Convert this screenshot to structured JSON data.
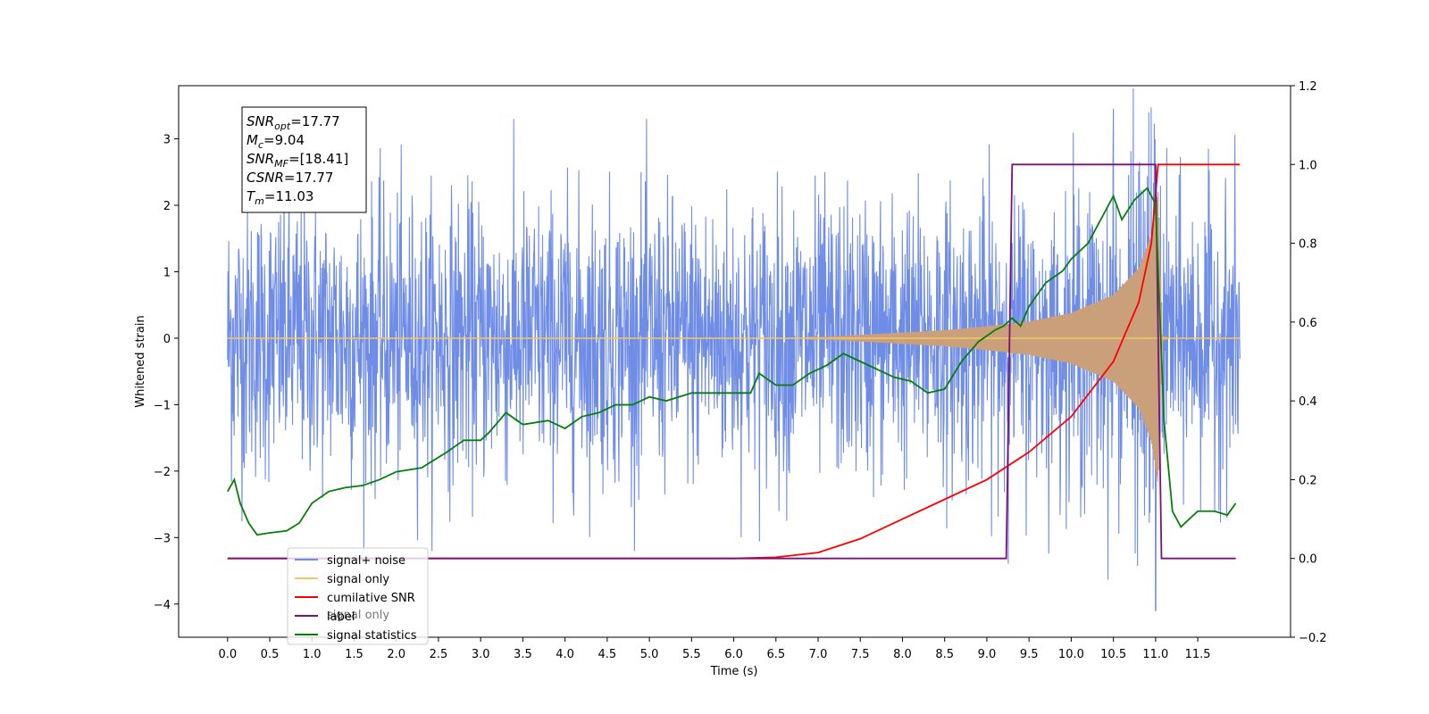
{
  "chart_data": {
    "type": "line",
    "xlabel": "Time (s)",
    "ylabel": "Whitened strain",
    "xlim": [
      -0.58,
      12.6
    ],
    "ylim_left": [
      -4.5,
      3.8
    ],
    "ylim_right": [
      -0.2,
      1.2
    ],
    "x_ticks": [
      "0.0",
      "0.5",
      "1.0",
      "1.5",
      "2.0",
      "2.5",
      "3.0",
      "3.5",
      "4.0",
      "4.5",
      "5.0",
      "5.5",
      "6.0",
      "6.5",
      "7.0",
      "7.5",
      "8.0",
      "8.5",
      "9.0",
      "9.5",
      "10.0",
      "10.5",
      "11.0",
      "11.5"
    ],
    "y_ticks_left": [
      "3",
      "2",
      "1",
      "0",
      "−1",
      "−2",
      "−3",
      "−4"
    ],
    "y_ticks_right": [
      "1.2",
      "1.0",
      "0.8",
      "0.6",
      "0.4",
      "0.2",
      "0.0",
      "−0.2"
    ],
    "annotation": {
      "lines": [
        {
          "base": "SNR",
          "sub": "opt",
          "value": "=17.77"
        },
        {
          "base": "M",
          "sub": "c",
          "value": "=9.04"
        },
        {
          "base": "SNR",
          "sub": "MF",
          "value": "=[18.41]"
        },
        {
          "base": "CSNR",
          "sub": "",
          "value": "=17.77"
        },
        {
          "base": "T",
          "sub": "m",
          "value": "=11.03"
        }
      ]
    },
    "legend": {
      "placement": "lower-left",
      "entries": [
        {
          "label": "signal+ noise",
          "color": "#6f8de6"
        },
        {
          "label": "signal only",
          "color": "#f5c56a"
        },
        {
          "label": "cumilative SNR",
          "color": "#ff0000"
        },
        {
          "label": "label",
          "color": "#7b0f7b"
        },
        {
          "label": "signal statistics",
          "color": "#087d08"
        }
      ],
      "hidden_label": "signal only"
    },
    "series": [
      {
        "name": "signal+ noise",
        "axis": "left",
        "color": "#6f8de6",
        "x_range": [
          0.0,
          12.0
        ],
        "typical_envelope": [
          -2.3,
          2.3
        ],
        "min": -4.1,
        "max": 3.45
      },
      {
        "name": "signal only",
        "axis": "left",
        "color": "#f5c56a",
        "envelope": [
          [
            0.0,
            0.0
          ],
          [
            6.8,
            0.0
          ],
          [
            7.5,
            0.05
          ],
          [
            8.5,
            0.12
          ],
          [
            9.0,
            0.18
          ],
          [
            9.5,
            0.25
          ],
          [
            10.0,
            0.38
          ],
          [
            10.5,
            0.65
          ],
          [
            10.8,
            1.05
          ],
          [
            10.95,
            1.55
          ],
          [
            11.03,
            2.2
          ],
          [
            11.08,
            0.05
          ],
          [
            11.15,
            0.0
          ],
          [
            12.0,
            0.0
          ]
        ]
      },
      {
        "name": "cumilative SNR",
        "axis": "right",
        "color": "#ff0000",
        "points": [
          [
            0.0,
            0.0
          ],
          [
            6.0,
            0.0
          ],
          [
            6.5,
            0.003
          ],
          [
            7.0,
            0.015
          ],
          [
            7.5,
            0.05
          ],
          [
            8.0,
            0.1
          ],
          [
            8.5,
            0.15
          ],
          [
            9.0,
            0.2
          ],
          [
            9.5,
            0.27
          ],
          [
            10.0,
            0.36
          ],
          [
            10.5,
            0.5
          ],
          [
            10.8,
            0.65
          ],
          [
            10.95,
            0.8
          ],
          [
            11.03,
            1.0
          ],
          [
            12.0,
            1.0
          ]
        ]
      },
      {
        "name": "label",
        "axis": "right",
        "color": "#7b0f7b",
        "points": [
          [
            0.0,
            0.0
          ],
          [
            9.23,
            0.0
          ],
          [
            9.3,
            1.0
          ],
          [
            11.0,
            1.0
          ],
          [
            11.07,
            0.0
          ],
          [
            11.95,
            0.0
          ]
        ]
      },
      {
        "name": "signal statistics",
        "axis": "right",
        "color": "#087d08",
        "points": [
          [
            0.0,
            0.17
          ],
          [
            0.08,
            0.2
          ],
          [
            0.15,
            0.14
          ],
          [
            0.25,
            0.09
          ],
          [
            0.35,
            0.06
          ],
          [
            0.5,
            0.065
          ],
          [
            0.7,
            0.07
          ],
          [
            0.85,
            0.09
          ],
          [
            1.0,
            0.14
          ],
          [
            1.2,
            0.17
          ],
          [
            1.4,
            0.18
          ],
          [
            1.6,
            0.185
          ],
          [
            1.8,
            0.2
          ],
          [
            2.0,
            0.22
          ],
          [
            2.3,
            0.23
          ],
          [
            2.6,
            0.27
          ],
          [
            2.8,
            0.3
          ],
          [
            3.0,
            0.3
          ],
          [
            3.1,
            0.32
          ],
          [
            3.3,
            0.37
          ],
          [
            3.5,
            0.34
          ],
          [
            3.8,
            0.35
          ],
          [
            4.0,
            0.33
          ],
          [
            4.2,
            0.36
          ],
          [
            4.4,
            0.37
          ],
          [
            4.6,
            0.39
          ],
          [
            4.8,
            0.39
          ],
          [
            5.0,
            0.41
          ],
          [
            5.2,
            0.4
          ],
          [
            5.5,
            0.42
          ],
          [
            5.8,
            0.42
          ],
          [
            6.0,
            0.42
          ],
          [
            6.2,
            0.42
          ],
          [
            6.3,
            0.47
          ],
          [
            6.5,
            0.44
          ],
          [
            6.7,
            0.44
          ],
          [
            6.9,
            0.47
          ],
          [
            7.1,
            0.49
          ],
          [
            7.3,
            0.52
          ],
          [
            7.5,
            0.5
          ],
          [
            7.7,
            0.48
          ],
          [
            7.9,
            0.46
          ],
          [
            8.1,
            0.45
          ],
          [
            8.3,
            0.42
          ],
          [
            8.5,
            0.43
          ],
          [
            8.7,
            0.5
          ],
          [
            8.9,
            0.55
          ],
          [
            9.1,
            0.58
          ],
          [
            9.2,
            0.59
          ],
          [
            9.3,
            0.61
          ],
          [
            9.4,
            0.59
          ],
          [
            9.5,
            0.64
          ],
          [
            9.7,
            0.7
          ],
          [
            9.9,
            0.73
          ],
          [
            10.0,
            0.76
          ],
          [
            10.2,
            0.8
          ],
          [
            10.4,
            0.88
          ],
          [
            10.5,
            0.92
          ],
          [
            10.6,
            0.86
          ],
          [
            10.75,
            0.91
          ],
          [
            10.9,
            0.94
          ],
          [
            11.0,
            0.9
          ],
          [
            11.1,
            0.35
          ],
          [
            11.2,
            0.12
          ],
          [
            11.3,
            0.08
          ],
          [
            11.5,
            0.12
          ],
          [
            11.7,
            0.12
          ],
          [
            11.85,
            0.11
          ],
          [
            11.95,
            0.14
          ]
        ]
      }
    ]
  }
}
